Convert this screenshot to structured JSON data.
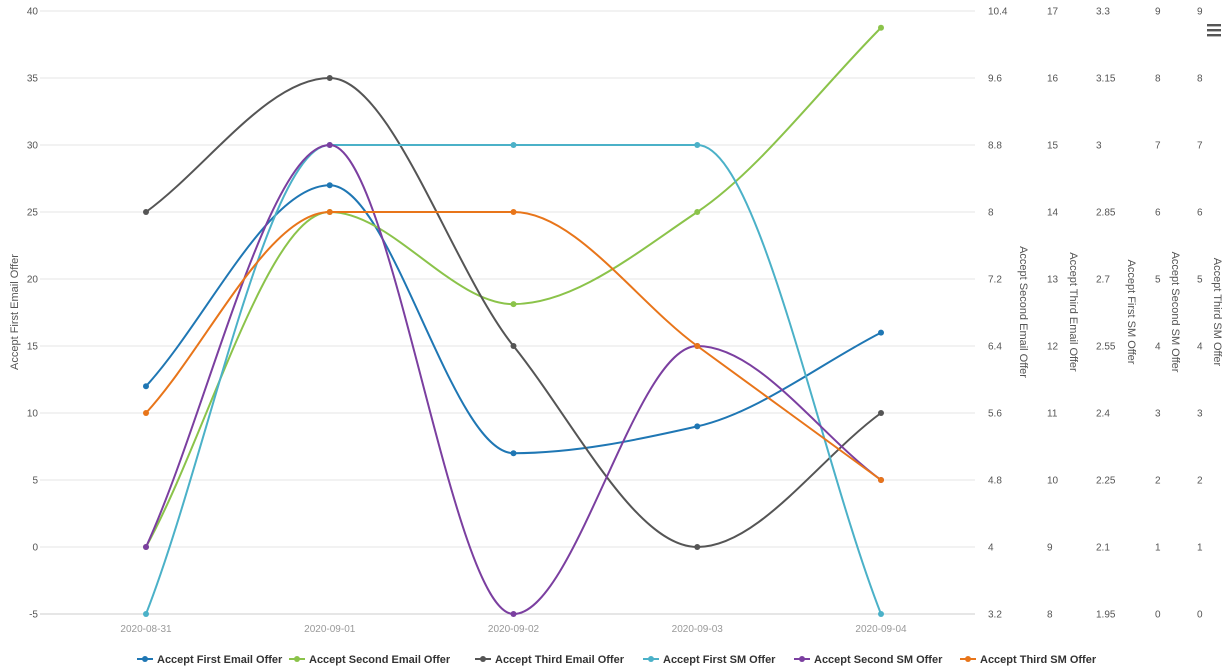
{
  "chart_data": {
    "type": "line",
    "categories": [
      "2020-08-31",
      "2020-09-01",
      "2020-09-02",
      "2020-09-03",
      "2020-09-04"
    ],
    "grid": true,
    "legend_position": "bottom-center",
    "menu_icon": "hamburger-menu-icon",
    "axes": [
      {
        "id": "y0",
        "side": "left",
        "title": "Accept First Email Offer",
        "min": -5,
        "max": 40,
        "ticks": [
          "40",
          "35",
          "30",
          "25",
          "20",
          "15",
          "10",
          "5",
          "0",
          "-5"
        ]
      },
      {
        "id": "y1",
        "side": "right",
        "title": "Accept Second Email Offer",
        "min": 3.2,
        "max": 10.4,
        "ticks": [
          "10.4",
          "9.6",
          "8.8",
          "8",
          "7.2",
          "6.4",
          "5.6",
          "4.8",
          "4",
          "3.2"
        ]
      },
      {
        "id": "y2",
        "side": "right",
        "title": "Accept Third Email Offer",
        "min": 8,
        "max": 17,
        "ticks": [
          "17",
          "16",
          "15",
          "14",
          "13",
          "12",
          "11",
          "10",
          "9",
          "8"
        ]
      },
      {
        "id": "y3",
        "side": "right",
        "title": "Accept First SM Offer",
        "min": 1.95,
        "max": 3.3,
        "ticks": [
          "3.3",
          "3.15",
          "3",
          "2.85",
          "2.7",
          "2.55",
          "2.4",
          "2.25",
          "2.1",
          "1.95"
        ]
      },
      {
        "id": "y4",
        "side": "right",
        "title": "Accept Second SM Offer",
        "min": 0,
        "max": 9,
        "ticks": [
          "9",
          "8",
          "7",
          "6",
          "5",
          "4",
          "3",
          "2",
          "1",
          "0"
        ]
      },
      {
        "id": "y5",
        "side": "right",
        "title": "Accept Third SM Offer",
        "min": 0,
        "max": 9,
        "ticks": [
          "9",
          "8",
          "7",
          "6",
          "5",
          "4",
          "3",
          "2",
          "1",
          "0"
        ]
      }
    ],
    "series": [
      {
        "name": "Accept First Email Offer",
        "axis": 0,
        "color": "#1f77b4",
        "values": [
          12,
          27,
          7,
          9,
          16
        ]
      },
      {
        "name": "Accept Second Email Offer",
        "axis": 1,
        "color": "#8bc34a",
        "values": [
          4,
          8,
          6.9,
          8,
          10.2
        ]
      },
      {
        "name": "Accept Third Email Offer",
        "axis": 2,
        "color": "#555555",
        "values": [
          14,
          16,
          12,
          9,
          11
        ]
      },
      {
        "name": "Accept First SM Offer",
        "axis": 3,
        "color": "#4bb1c8",
        "values": [
          1.95,
          3,
          3,
          3,
          1.95
        ]
      },
      {
        "name": "Accept Second SM Offer",
        "axis": 4,
        "color": "#7b3fa0",
        "values": [
          1,
          7,
          0,
          4,
          2
        ]
      },
      {
        "name": "Accept Third SM Offer",
        "axis": 5,
        "color": "#e8751a",
        "values": [
          3,
          6,
          6,
          4,
          2
        ]
      }
    ]
  }
}
